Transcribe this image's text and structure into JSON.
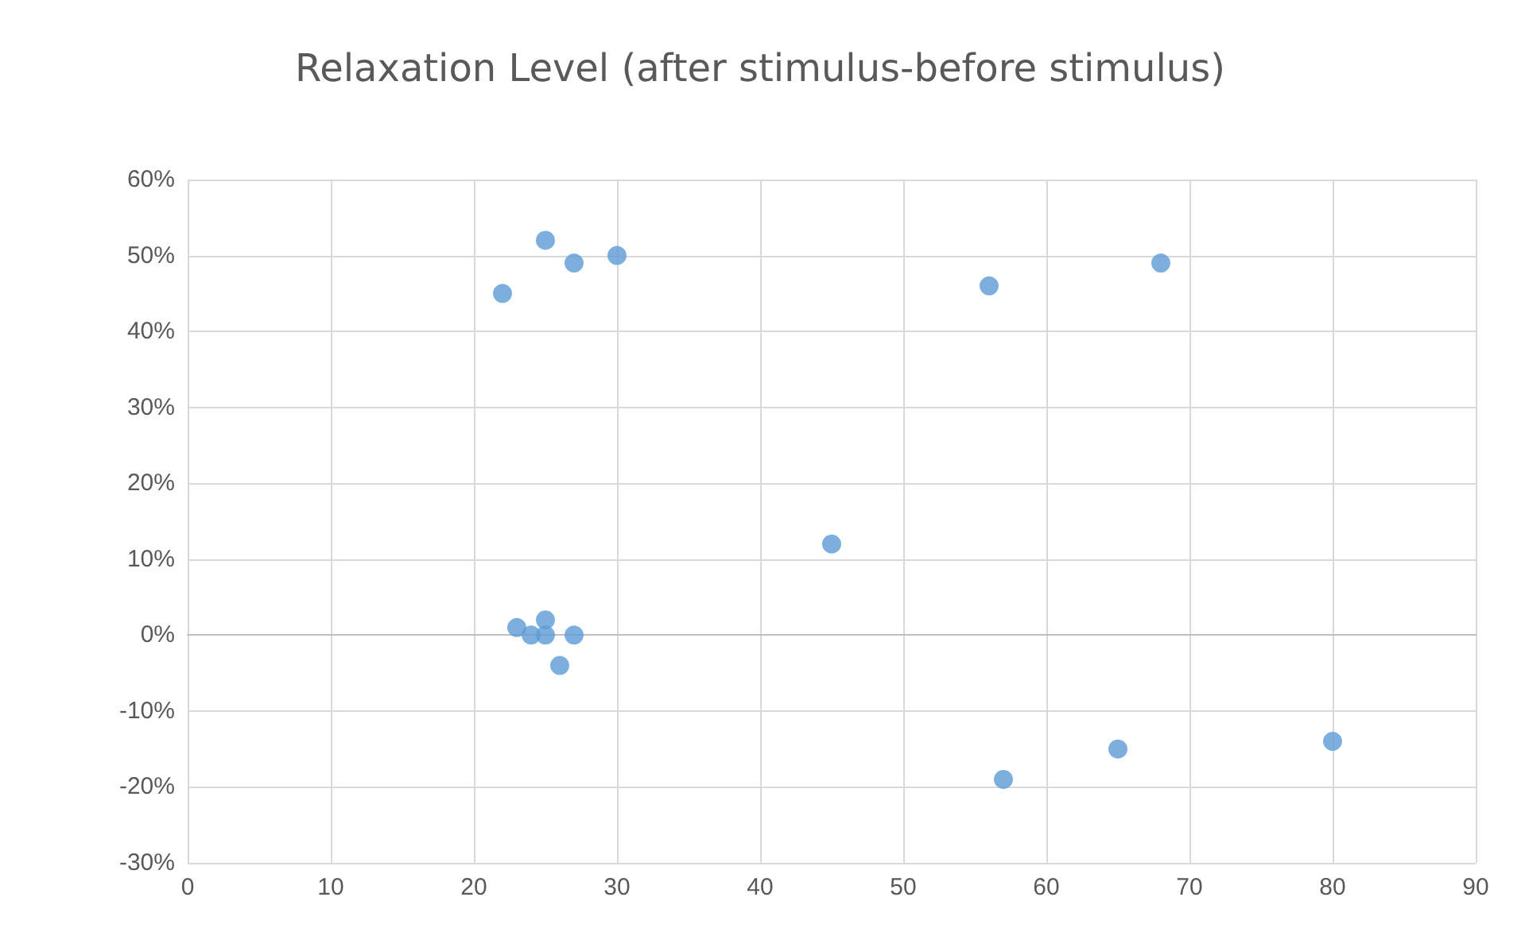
{
  "chart_data": {
    "type": "scatter",
    "title": "Relaxation Level (after stimulus-before stimulus)",
    "x": [
      22,
      25,
      27,
      30,
      56,
      68,
      45,
      57,
      65,
      80,
      23,
      24,
      25,
      25,
      27,
      26
    ],
    "series": [
      {
        "color": "#5b9bd5",
        "values": [
          45,
          52,
          49,
          50,
          46,
          49,
          12,
          -19,
          -15,
          -14,
          1,
          0,
          2,
          0,
          0,
          -4
        ]
      }
    ],
    "xlim": [
      0,
      90
    ],
    "xticks": [
      0,
      10,
      20,
      30,
      40,
      50,
      60,
      70,
      80,
      90
    ],
    "ylim": [
      -30,
      60
    ],
    "yticks": [
      {
        "value": -30,
        "label": "-30%"
      },
      {
        "value": -20,
        "label": "-20%"
      },
      {
        "value": -10,
        "label": "-10%"
      },
      {
        "value": 0,
        "label": "0%"
      },
      {
        "value": 10,
        "label": "10%"
      },
      {
        "value": 20,
        "label": "20%"
      },
      {
        "value": 30,
        "label": "30%"
      },
      {
        "value": 40,
        "label": "40%"
      },
      {
        "value": 50,
        "label": "50%"
      },
      {
        "value": 60,
        "label": "60%"
      }
    ],
    "grid": true,
    "marker": "circle"
  }
}
